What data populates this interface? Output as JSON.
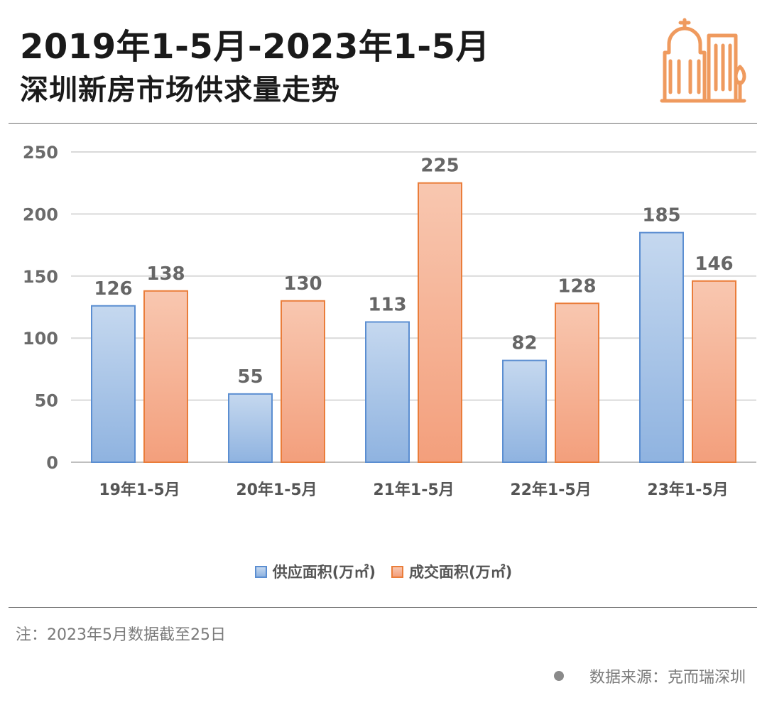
{
  "title": {
    "line1": "2019年1-5月-2023年1-5月",
    "line2": "深圳新房市场供求量走势"
  },
  "colors": {
    "supply_fill_top": "#c5d8ef",
    "supply_fill_bottom": "#8fb3e0",
    "supply_stroke": "#5b8ed1",
    "deal_fill_top": "#f8c7b0",
    "deal_fill_bottom": "#f39f7c",
    "deal_stroke": "#ea7d3a",
    "icon": "#ef9a5e",
    "grid": "#d9d9d9"
  },
  "icon": "building-icon",
  "chart_data": {
    "type": "bar",
    "categories": [
      "19年1-5月",
      "20年1-5月",
      "21年1-5月",
      "22年1-5月",
      "23年1-5月"
    ],
    "series": [
      {
        "name": "供应面积(万㎡)",
        "values": [
          126,
          55,
          113,
          82,
          185
        ]
      },
      {
        "name": "成交面积(万㎡)",
        "values": [
          138,
          130,
          225,
          128,
          146
        ]
      }
    ],
    "ylim": [
      0,
      250
    ],
    "yticks": [
      "0",
      "50",
      "100",
      "150",
      "200",
      "250"
    ],
    "grid": true,
    "legend_position": "bottom"
  },
  "legend": {
    "supply_label": "供应面积(万㎡)",
    "deal_label": "成交面积(万㎡)"
  },
  "footer": {
    "note": "注：2023年5月数据截至25日",
    "source": "数据来源：克而瑞深圳"
  }
}
